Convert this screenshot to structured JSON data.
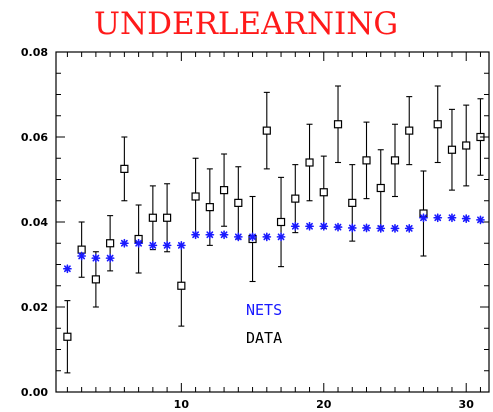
{
  "chart_data": {
    "type": "scatter",
    "title": "UNDERLEARNING",
    "xlabel": "",
    "ylabel": "",
    "xlim": [
      1.2,
      31.6
    ],
    "ylim": [
      0.0,
      0.08
    ],
    "x_ticks": [
      10,
      20,
      30
    ],
    "y_ticks": [
      0.0,
      0.02,
      0.04,
      0.06,
      0.08
    ],
    "x_tick_labels": [
      "10",
      "20",
      "30"
    ],
    "y_tick_labels": [
      "0.00",
      "0.02",
      "0.04",
      "0.06",
      "0.08"
    ],
    "grid": false,
    "legend_position": "lower-center",
    "series": [
      {
        "name": "NETS",
        "marker": "asterisk",
        "color": "#1a1aff",
        "x": [
          2,
          3,
          4,
          5,
          6,
          7,
          8,
          9,
          10,
          11,
          12,
          13,
          14,
          15,
          16,
          17,
          18,
          19,
          20,
          21,
          22,
          23,
          24,
          25,
          26,
          27,
          28,
          29,
          30,
          31
        ],
        "y": [
          0.029,
          0.032,
          0.0315,
          0.0315,
          0.035,
          0.035,
          0.0345,
          0.0345,
          0.0345,
          0.037,
          0.037,
          0.037,
          0.0365,
          0.0365,
          0.0365,
          0.0365,
          0.039,
          0.039,
          0.039,
          0.0388,
          0.0386,
          0.0386,
          0.0385,
          0.0385,
          0.0385,
          0.041,
          0.041,
          0.041,
          0.0408,
          0.0405
        ]
      },
      {
        "name": "DATA",
        "marker": "open-square",
        "color": "#000000",
        "x": [
          2,
          3,
          4,
          5,
          6,
          7,
          8,
          9,
          10,
          11,
          12,
          13,
          14,
          15,
          16,
          17,
          18,
          19,
          20,
          21,
          22,
          23,
          24,
          25,
          26,
          27,
          28,
          29,
          30,
          31
        ],
        "y": [
          0.013,
          0.0335,
          0.0265,
          0.035,
          0.0525,
          0.036,
          0.041,
          0.041,
          0.025,
          0.046,
          0.0435,
          0.0475,
          0.0445,
          0.036,
          0.0615,
          0.04,
          0.0455,
          0.054,
          0.047,
          0.063,
          0.0445,
          0.0545,
          0.048,
          0.0545,
          0.0615,
          0.042,
          0.063,
          0.057,
          0.058,
          0.06
        ],
        "err": [
          0.0085,
          0.0065,
          0.0065,
          0.0065,
          0.0075,
          0.008,
          0.0075,
          0.008,
          0.0095,
          0.009,
          0.009,
          0.0085,
          0.0085,
          0.01,
          0.009,
          0.0105,
          0.008,
          0.009,
          0.0085,
          0.009,
          0.009,
          0.009,
          0.009,
          0.0085,
          0.008,
          0.01,
          0.009,
          0.0095,
          0.0095,
          0.009
        ]
      }
    ]
  }
}
